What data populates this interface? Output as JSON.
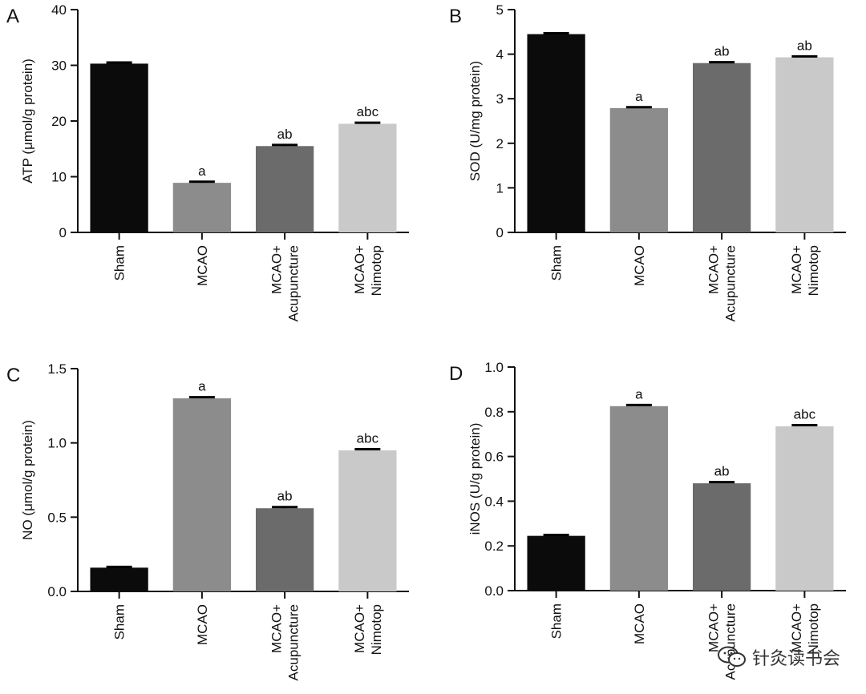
{
  "colors": {
    "bars": [
      "#0b0b0b",
      "#8c8c8c",
      "#6b6b6b",
      "#c9c9c9"
    ],
    "axis": "#111111"
  },
  "chart_data": [
    {
      "panel": "A",
      "type": "bar",
      "categories": [
        "Sham",
        "MCAO",
        "MCAO+\nAcupuncture",
        "MCAO+\nNimotop"
      ],
      "values": [
        30.3,
        8.9,
        15.5,
        19.5
      ],
      "errors": [
        0.2,
        0.2,
        0.2,
        0.2
      ],
      "significance": [
        "",
        "a",
        "ab",
        "abc"
      ],
      "ylabel": "ATP (μmol/g protein)",
      "ylim": [
        0,
        40
      ],
      "yticks": [
        0,
        10,
        20,
        30,
        40
      ],
      "ytick_labels": [
        "0",
        "10",
        "20",
        "30",
        "40"
      ]
    },
    {
      "panel": "B",
      "type": "bar",
      "categories": [
        "Sham",
        "MCAO",
        "MCAO+\nAcupuncture",
        "MCAO+\nNimotop"
      ],
      "values": [
        4.45,
        2.79,
        3.8,
        3.93
      ],
      "errors": [
        0.02,
        0.02,
        0.02,
        0.02
      ],
      "significance": [
        "",
        "a",
        "ab",
        "ab"
      ],
      "ylabel": "SOD (U/mg protein)",
      "ylim": [
        0,
        5
      ],
      "yticks": [
        0,
        1,
        2,
        3,
        4,
        5
      ],
      "ytick_labels": [
        "0",
        "1",
        "2",
        "3",
        "4",
        "5"
      ]
    },
    {
      "panel": "C",
      "type": "bar",
      "categories": [
        "Sham",
        "MCAO",
        "MCAO+\nAcupuncture",
        "MCAO+\nNimotop"
      ],
      "values": [
        0.16,
        1.3,
        0.56,
        0.95
      ],
      "errors": [
        0.005,
        0.008,
        0.008,
        0.008
      ],
      "significance": [
        "",
        "a",
        "ab",
        "abc"
      ],
      "ylabel": "NO (μmol/g protein)",
      "ylim": [
        0,
        1.5
      ],
      "yticks": [
        0,
        0.5,
        1.0,
        1.5
      ],
      "ytick_labels": [
        "0.0",
        "0.5",
        "1.0",
        "1.5"
      ]
    },
    {
      "panel": "D",
      "type": "bar",
      "categories": [
        "Sham",
        "MCAO",
        "MCAO+\nAcupuncture",
        "MCAO+\nNimotop"
      ],
      "values": [
        0.245,
        0.825,
        0.48,
        0.735
      ],
      "errors": [
        0.004,
        0.005,
        0.005,
        0.005
      ],
      "significance": [
        "",
        "a",
        "ab",
        "abc"
      ],
      "ylabel": "iNOS (U/g protein)",
      "ylim": [
        0,
        1.0
      ],
      "yticks": [
        0,
        0.2,
        0.4,
        0.6,
        0.8,
        1.0
      ],
      "ytick_labels": [
        "0.0",
        "0.2",
        "0.4",
        "0.6",
        "0.8",
        "1.0"
      ]
    }
  ],
  "watermark": {
    "text": "针灸读书会",
    "icon": "wechat-logo-icon"
  }
}
